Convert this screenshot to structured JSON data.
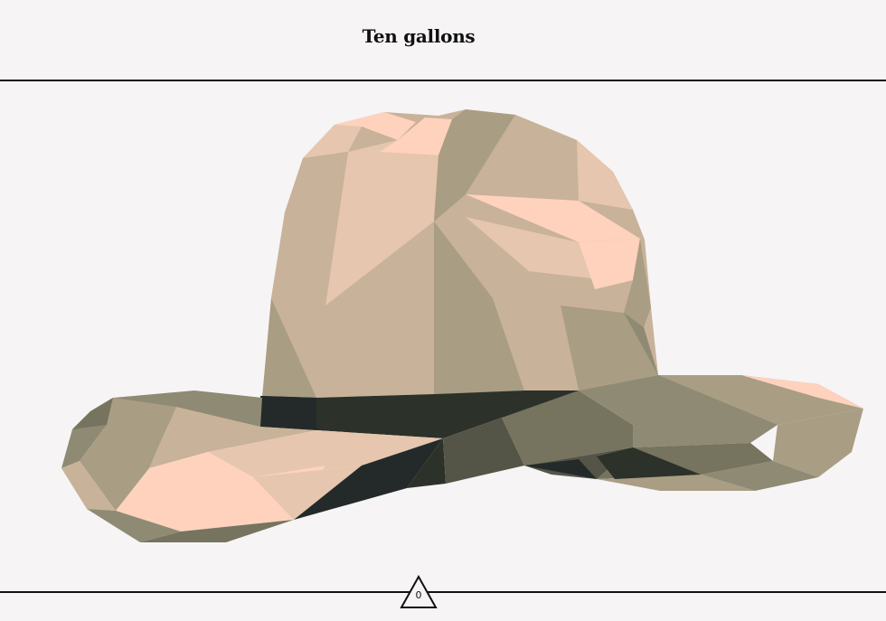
{
  "header": {
    "title": "Ten gallons"
  },
  "counter": {
    "value": "0",
    "icon": "triangle-icon"
  },
  "hat": {
    "icon": "cowboy-hat-illustration",
    "colors": {
      "peach": "#fed2bd",
      "light_tan": "#e6c6ae",
      "tan": "#c8b299",
      "mid_tan": "#a99d84",
      "dark_tan": "#8f8a73",
      "olive": "#76735f",
      "dark_olive": "#545546",
      "band": "#2c3129",
      "band_dark": "#232a29"
    }
  },
  "colors": {
    "background": "#f6f4f5",
    "rule": "#111111"
  }
}
